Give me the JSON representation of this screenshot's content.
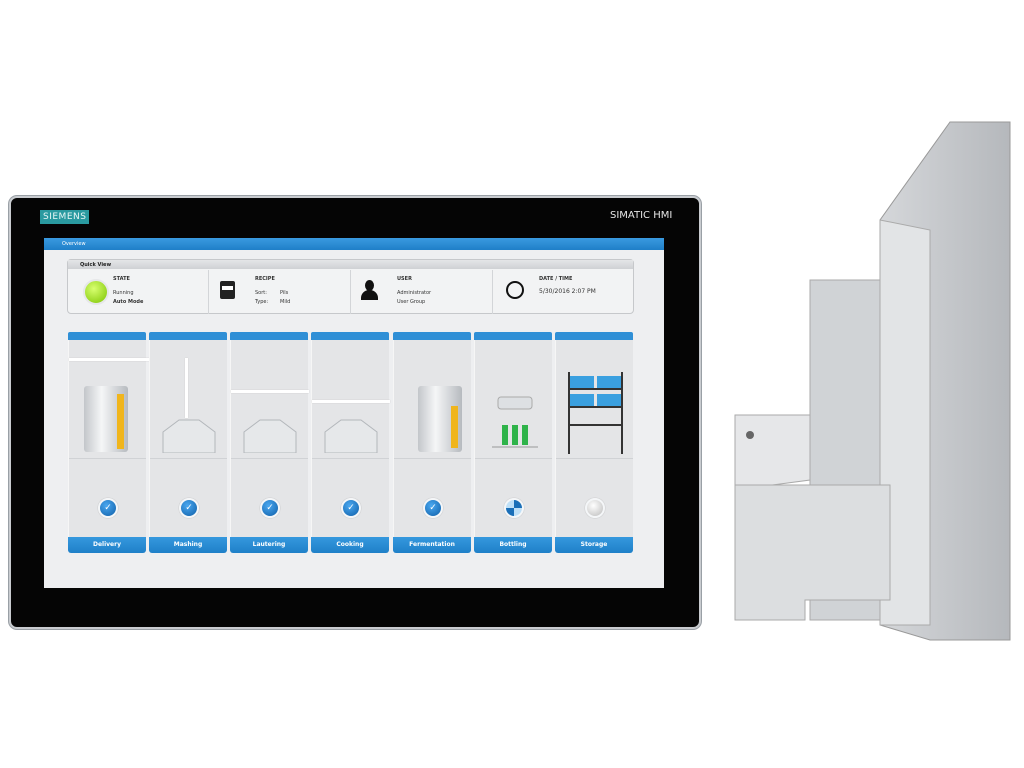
{
  "device": {
    "brand": "SIEMENS",
    "model": "SIMATIC HMI"
  },
  "screen": {
    "title": "Overview",
    "quick_view": {
      "title": "Quick View",
      "state": {
        "label": "STATE",
        "line1": "Running",
        "line2": "Auto Mode",
        "indicator_color": "#9be21c"
      },
      "recipe": {
        "label": "RECIPE",
        "sort_label": "Sort:",
        "sort_value": "Pils",
        "type_label": "Type:",
        "type_value": "Mild"
      },
      "user": {
        "label": "USER",
        "name": "Administrator",
        "group": "User Group"
      },
      "datetime": {
        "label": "DATE / TIME",
        "value": "5/30/2016 2:07 PM"
      }
    },
    "steps": [
      {
        "label": "Delivery",
        "status": "done"
      },
      {
        "label": "Mashing",
        "status": "done"
      },
      {
        "label": "Lautering",
        "status": "done"
      },
      {
        "label": "Cooking",
        "status": "done"
      },
      {
        "label": "Fermentation",
        "status": "done"
      },
      {
        "label": "Bottling",
        "status": "in-progress"
      },
      {
        "label": "Storage",
        "status": "idle"
      }
    ],
    "accent": "#2f8fd6"
  }
}
